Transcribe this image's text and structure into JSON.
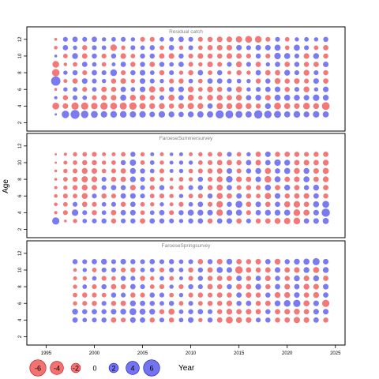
{
  "chart_data": {
    "type": "scatter",
    "subtype": "residual-bubble",
    "xlabel": "Year",
    "ylabel": "Age",
    "xlim": [
      1993,
      2026
    ],
    "x_ticks": [
      1995,
      2000,
      2005,
      2010,
      2015,
      2020,
      2025
    ],
    "colors": {
      "positive": "#7474f0",
      "negative": "#f27272"
    },
    "legend": {
      "placement": "bottom-left",
      "values": [
        -6,
        -4,
        -2,
        0,
        2,
        4,
        6
      ]
    },
    "panels": [
      {
        "title": "Residual catch",
        "ylim": [
          1,
          13.5
        ],
        "y_ticks": [
          2,
          4,
          6,
          8,
          10,
          12
        ],
        "years": [
          1996,
          1997,
          1998,
          1999,
          2000,
          2001,
          2002,
          2003,
          2004,
          2005,
          2006,
          2007,
          2008,
          2009,
          2010,
          2011,
          2012,
          2013,
          2014,
          2015,
          2016,
          2017,
          2018,
          2019,
          2020,
          2021,
          2022,
          2023,
          2024
        ],
        "ages": [
          3,
          4,
          5,
          6,
          7,
          8,
          9,
          10,
          11,
          12
        ],
        "residuals": [
          [
            0.4,
            4.2,
            6.0,
            4.2,
            3.6,
            3.2,
            3.4,
            3.4,
            3.0,
            3.2,
            2.4,
            3.2,
            2.6,
            2.2,
            2.6,
            3.0,
            3.0,
            5.0,
            4.6,
            3.6,
            3.0,
            5.2,
            4.2,
            3.8,
            2.8,
            3.4,
            2.6,
            3.2,
            2.8
          ],
          [
            -3.6,
            -2.4,
            -4.0,
            -4.0,
            -3.2,
            -4.0,
            -3.6,
            -3.8,
            -4.2,
            -3.0,
            -2.6,
            -2.6,
            -2.0,
            -2.4,
            -3.0,
            -2.6,
            2.2,
            -3.0,
            -2.6,
            -3.4,
            -2.6,
            -2.0,
            2.6,
            -3.6,
            -2.8,
            -2.4,
            -3.4,
            -2.6,
            -4.6
          ],
          [
            0.8,
            -2.0,
            1.8,
            1.6,
            -1.8,
            -2.4,
            -2.4,
            2.8,
            -2.6,
            -2.6,
            -2.0,
            1.8,
            -2.8,
            2.2,
            -2.8,
            -1.4,
            -2.6,
            -2.6,
            -2.2,
            -2.6,
            2.2,
            2.6,
            -2.4,
            2.8,
            2.8,
            2.6,
            2.4,
            3.2,
            2.6
          ],
          [
            -0.6,
            1.4,
            1.6,
            -1.8,
            1.6,
            -2.2,
            -2.0,
            2.2,
            1.6,
            2.4,
            -3.0,
            -2.0,
            2.0,
            2.4,
            -2.6,
            -1.6,
            -2.6,
            -2.0,
            1.8,
            -2.6,
            1.4,
            1.8,
            2.2,
            2.4,
            -2.0,
            1.8,
            -2.6,
            1.4,
            2.4
          ],
          [
            6.6,
            -1.2,
            -2.2,
            2.4,
            1.8,
            1.4,
            -2.0,
            -2.4,
            -1.4,
            2.4,
            1.8,
            1.4,
            -1.8,
            -2.0,
            1.6,
            -1.6,
            2.2,
            2.2,
            1.8,
            1.6,
            1.4,
            -2.0,
            2.0,
            -2.6,
            -2.0,
            -2.4,
            -1.8,
            2.4,
            -2.2
          ],
          [
            -4.2,
            1.4,
            2.0,
            -1.8,
            2.2,
            1.8,
            3.4,
            -1.8,
            2.0,
            2.4,
            1.6,
            -2.0,
            1.8,
            -1.4,
            -2.0,
            2.2,
            -1.6,
            2.0,
            -1.2,
            -2.0,
            -1.4,
            2.2,
            -2.2,
            -2.2,
            2.6,
            1.8,
            -2.6,
            1.8,
            -2.0
          ],
          [
            -3.4,
            -1.0,
            -1.6,
            2.2,
            1.6,
            -1.6,
            1.2,
            2.2,
            -2.0,
            2.0,
            -2.2,
            2.0,
            1.6,
            2.2,
            -1.8,
            -1.4,
            -2.4,
            -1.8,
            1.8,
            -2.6,
            1.8,
            -2.2,
            1.4,
            2.2,
            -2.2,
            2.0,
            -2.0,
            -2.2,
            2.4
          ],
          [
            0.6,
            -1.6,
            2.6,
            -2.2,
            2.0,
            -1.8,
            2.0,
            -2.4,
            -1.6,
            2.0,
            2.0,
            -2.2,
            -2.4,
            2.0,
            -1.8,
            -2.4,
            -2.0,
            -2.0,
            -2.4,
            -2.2,
            -1.8,
            2.0,
            -1.8,
            3.2,
            2.8,
            1.8,
            -2.4,
            2.6,
            -2.0
          ],
          [
            -1.0,
            2.2,
            1.4,
            -2.0,
            1.8,
            1.6,
            -3.2,
            -1.4,
            1.8,
            1.6,
            2.0,
            -1.6,
            2.2,
            -1.4,
            1.8,
            -1.6,
            -2.2,
            -2.4,
            -2.4,
            2.4,
            1.8,
            2.4,
            2.4,
            2.8,
            -1.6,
            2.8,
            1.8,
            -1.6,
            -2.2
          ],
          [
            -0.6,
            1.8,
            2.2,
            1.8,
            2.2,
            1.4,
            1.6,
            1.8,
            1.4,
            -1.8,
            -1.8,
            1.6,
            1.6,
            2.2,
            1.8,
            -1.8,
            -2.0,
            -2.4,
            -2.4,
            -3.0,
            -3.6,
            -3.4,
            -1.8,
            1.8,
            -1.6,
            1.4,
            1.6,
            1.4,
            2.0
          ]
        ]
      },
      {
        "title": "FaroeseSummersurvey",
        "ylim": [
          1,
          13.5
        ],
        "y_ticks": [
          2,
          4,
          6,
          8,
          10,
          12
        ],
        "years": [
          1996,
          1997,
          1998,
          1999,
          2000,
          2001,
          2002,
          2003,
          2004,
          2005,
          2006,
          2007,
          2008,
          2009,
          2010,
          2011,
          2012,
          2013,
          2014,
          2015,
          2016,
          2017,
          2018,
          2019,
          2020,
          2021,
          2022,
          2023,
          2024
        ],
        "ages": [
          3,
          4,
          5,
          6,
          7,
          8,
          9,
          10,
          11
        ],
        "residuals": [
          [
            4.0,
            -0.6,
            -1.4,
            1.6,
            1.8,
            2.0,
            -2.0,
            1.8,
            2.0,
            -2.2,
            2.2,
            2.0,
            1.8,
            1.4,
            2.0,
            2.2,
            -2.0,
            2.2,
            2.4,
            -2.2,
            1.8,
            -2.0,
            -2.2,
            -2.6,
            -3.0,
            -3.4,
            2.2,
            2.4,
            2.8
          ],
          [
            -0.8,
            -1.8,
            3.2,
            1.8,
            -2.0,
            1.6,
            -2.2,
            2.2,
            2.4,
            -1.6,
            1.6,
            2.2,
            -1.8,
            2.0,
            2.8,
            2.6,
            2.4,
            -3.2,
            2.6,
            2.8,
            -1.8,
            2.2,
            2.6,
            2.6,
            2.8,
            -3.4,
            -2.8,
            2.4,
            5.2
          ],
          [
            -1.0,
            -1.6,
            1.8,
            -2.2,
            -1.8,
            1.6,
            1.8,
            -2.0,
            2.2,
            -1.6,
            -1.4,
            1.4,
            -1.2,
            -1.8,
            1.6,
            2.2,
            -1.8,
            -3.2,
            2.0,
            3.6,
            -2.2,
            2.4,
            -2.2,
            2.2,
            -2.8,
            -3.2,
            -2.2,
            2.8,
            3.6
          ],
          [
            -1.0,
            -1.8,
            -1.6,
            -2.6,
            1.8,
            -2.0,
            -1.8,
            2.2,
            2.4,
            1.8,
            -1.6,
            -1.8,
            -1.4,
            1.4,
            -1.6,
            -1.8,
            2.0,
            -2.8,
            -2.2,
            2.2,
            -2.0,
            -1.6,
            -3.0,
            2.4,
            -2.0,
            -2.2,
            -2.4,
            2.2,
            -2.0
          ],
          [
            -0.8,
            -1.4,
            -2.0,
            -2.6,
            -2.2,
            1.8,
            2.2,
            2.0,
            -2.4,
            1.8,
            -1.8,
            2.0,
            -1.2,
            -1.8,
            1.8,
            2.0,
            -2.0,
            -2.8,
            2.2,
            -1.8,
            -2.0,
            -1.8,
            2.8,
            -2.2,
            2.6,
            -2.2,
            2.0,
            2.6,
            -2.2
          ],
          [
            -0.6,
            -1.6,
            -2.0,
            -3.0,
            -2.6,
            1.8,
            -2.0,
            -2.2,
            2.6,
            1.8,
            -1.8,
            -1.4,
            -1.0,
            -1.6,
            -1.4,
            2.0,
            -1.8,
            -2.6,
            3.2,
            -2.4,
            -2.2,
            2.4,
            -3.4,
            2.8,
            -2.2,
            -2.4,
            2.8,
            -2.2,
            -2.6
          ],
          [
            -0.6,
            -1.4,
            -1.8,
            -2.6,
            -2.4,
            -1.6,
            -1.8,
            -2.2,
            2.6,
            2.0,
            1.6,
            -1.8,
            1.2,
            1.4,
            -1.6,
            -1.8,
            -2.0,
            -2.4,
            2.4,
            -1.8,
            2.0,
            2.6,
            -2.8,
            2.2,
            2.8,
            -2.6,
            2.6,
            -2.4,
            -2.8
          ],
          [
            -0.4,
            -1.2,
            -1.6,
            -2.0,
            -2.0,
            -1.4,
            -1.6,
            2.0,
            3.0,
            -1.6,
            1.6,
            -1.4,
            1.2,
            1.4,
            1.4,
            -1.6,
            -1.8,
            -2.2,
            -2.2,
            -2.0,
            2.2,
            -2.4,
            2.2,
            3.2,
            2.6,
            -2.2,
            -2.4,
            -2.2,
            -2.6
          ],
          [
            -0.4,
            -0.8,
            -1.4,
            -1.6,
            -1.8,
            -1.2,
            -1.2,
            -1.6,
            2.0,
            -1.4,
            1.2,
            -1.2,
            1.0,
            1.2,
            -1.2,
            -1.4,
            -1.6,
            -1.8,
            1.8,
            -1.6,
            1.4,
            -2.2,
            2.4,
            -2.0,
            -2.2,
            -2.0,
            -1.8,
            -2.0,
            -2.2
          ]
        ]
      },
      {
        "title": "FaroeseSpringsurvey",
        "ylim": [
          1,
          13.5
        ],
        "y_ticks": [
          2,
          4,
          6,
          8,
          10,
          12
        ],
        "years": [
          1998,
          1999,
          2000,
          2001,
          2002,
          2003,
          2004,
          2005,
          2006,
          2007,
          2008,
          2009,
          2010,
          2011,
          2012,
          2013,
          2014,
          2015,
          2016,
          2017,
          2018,
          2019,
          2020,
          2021,
          2022,
          2023,
          2024
        ],
        "ages": [
          4,
          5,
          6,
          7,
          8,
          9,
          10,
          11
        ],
        "residuals": [
          [
            2.2,
            1.6,
            1.8,
            2.0,
            -2.2,
            -1.8,
            2.4,
            2.2,
            -2.0,
            1.8,
            -2.0,
            1.6,
            2.4,
            -1.4,
            2.0,
            -2.2,
            -3.6,
            -2.6,
            -2.4,
            1.8,
            2.0,
            -2.0,
            -2.2,
            -3.0,
            -2.4,
            2.2,
            -2.0
          ],
          [
            2.6,
            2.0,
            2.2,
            2.0,
            2.4,
            2.6,
            3.6,
            2.8,
            2.6,
            -2.0,
            -2.8,
            1.6,
            2.0,
            2.2,
            1.8,
            -2.0,
            -2.6,
            -2.2,
            -2.4,
            -2.2,
            2.0,
            -2.2,
            -2.4,
            -2.6,
            -2.2,
            2.4,
            2.4
          ],
          [
            -1.4,
            -1.8,
            -2.0,
            1.8,
            -2.0,
            -2.2,
            2.6,
            2.2,
            2.0,
            1.6,
            2.0,
            -1.6,
            1.8,
            -1.6,
            -2.0,
            -2.0,
            -2.4,
            2.0,
            2.2,
            -2.0,
            -2.2,
            2.6,
            3.4,
            4.0,
            -2.8,
            2.4,
            -4.0
          ],
          [
            -1.6,
            -2.0,
            -1.8,
            -1.6,
            2.0,
            1.8,
            -2.0,
            -1.8,
            2.0,
            1.8,
            -1.6,
            1.4,
            -1.8,
            -2.0,
            -1.8,
            -2.2,
            -2.0,
            2.2,
            -2.4,
            -2.0,
            2.0,
            -2.6,
            -2.6,
            2.4,
            -2.2,
            -2.6,
            2.2
          ],
          [
            -1.4,
            1.6,
            -1.8,
            2.0,
            -2.2,
            -2.0,
            2.2,
            1.8,
            -1.6,
            -1.8,
            1.4,
            -1.8,
            2.0,
            1.8,
            -2.2,
            -2.0,
            2.0,
            -2.4,
            -2.2,
            2.6,
            -2.0,
            2.2,
            -2.4,
            2.2,
            -2.6,
            -2.4,
            2.4
          ],
          [
            -1.2,
            -1.4,
            1.6,
            -1.8,
            -1.6,
            2.0,
            1.8,
            -2.0,
            -1.4,
            1.6,
            -1.6,
            1.2,
            -1.8,
            2.0,
            -2.0,
            -2.2,
            -2.2,
            2.4,
            -2.0,
            2.2,
            -2.4,
            2.0,
            -2.0,
            2.6,
            -2.4,
            2.6,
            -2.2
          ],
          [
            -1.0,
            1.4,
            -1.6,
            1.8,
            1.8,
            -1.8,
            -2.0,
            1.6,
            1.6,
            -1.8,
            1.8,
            1.6,
            -2.0,
            2.0,
            -2.2,
            2.8,
            2.4,
            -4.2,
            -2.2,
            -2.0,
            -2.2,
            2.4,
            -2.2,
            -2.4,
            2.6,
            -2.8,
            2.6
          ],
          [
            2.0,
            1.8,
            2.2,
            2.6,
            1.8,
            2.4,
            2.0,
            1.8,
            2.2,
            1.8,
            2.0,
            1.6,
            1.8,
            -2.2,
            2.0,
            -2.4,
            2.6,
            -2.2,
            -2.0,
            -2.4,
            2.2,
            -2.6,
            2.0,
            2.6,
            2.8,
            3.8,
            2.4
          ]
        ]
      }
    ]
  }
}
